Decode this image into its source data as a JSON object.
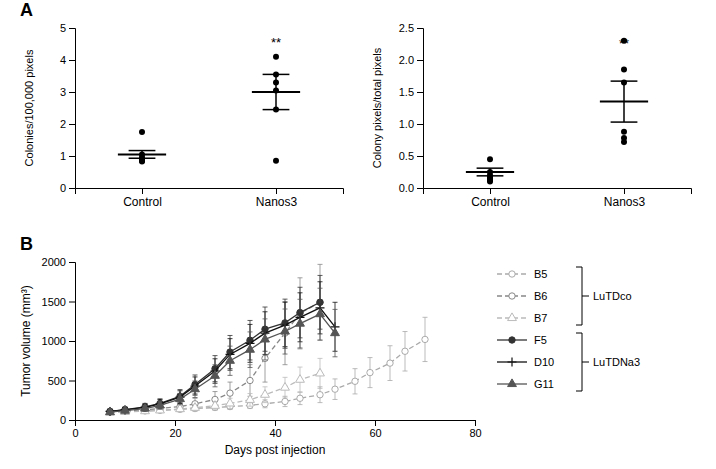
{
  "chart_data": [
    {
      "type": "dot",
      "title": "A",
      "ylabel": "Colonies/100,000 pixels",
      "categories": [
        "Control",
        "Nanos3"
      ],
      "points": [
        [
          1.75,
          1.05,
          0.95,
          0.9,
          0.88,
          0.85,
          0.83
        ],
        [
          4.1,
          3.55,
          3.3,
          3.05,
          2.45,
          0.85
        ]
      ],
      "means": [
        1.05,
        3.0
      ],
      "errors_low": [
        0.12,
        0.55
      ],
      "errors_high": [
        0.12,
        0.55
      ],
      "color": "#000000",
      "ylim": [
        0,
        5
      ],
      "yticks": [
        0,
        1,
        2,
        3,
        4,
        5
      ],
      "annotations": [
        {
          "text": "**",
          "x": "Nanos3",
          "y": 4.4
        }
      ],
      "grid": false
    },
    {
      "type": "dot",
      "ylabel": "Colony pixels/total pixels",
      "categories": [
        "Control",
        "Nanos3"
      ],
      "points": [
        [
          0.45,
          0.25,
          0.2,
          0.17,
          0.15,
          0.12,
          0.1
        ],
        [
          2.3,
          1.85,
          1.65,
          0.88,
          0.78,
          0.72
        ]
      ],
      "means": [
        0.25,
        1.35
      ],
      "errors_low": [
        0.06,
        0.32
      ],
      "errors_high": [
        0.06,
        0.32
      ],
      "color": "#000000",
      "ylim": [
        0,
        2.5
      ],
      "yticks": [
        {
          "value": 0,
          "label": "0.0"
        },
        0.5,
        {
          "value": 1,
          "label": "1.0"
        },
        1.5,
        {
          "value": 2,
          "label": "2.0"
        },
        2.5
      ],
      "annotations": [
        {
          "text": "**",
          "x": "Nanos3",
          "y": 2.18
        }
      ],
      "grid": false
    },
    {
      "type": "line",
      "title": "B",
      "xlabel": "Days post injection",
      "ylabel": "Tumor volume (mm³)",
      "xlim": [
        0,
        80
      ],
      "xticks": [
        0,
        20,
        40,
        60,
        80
      ],
      "ylim": [
        0,
        2000
      ],
      "yticks": [
        0,
        500,
        1000,
        1500,
        2000
      ],
      "legend": "right",
      "grid": false,
      "series": [
        {
          "name": "B5",
          "group": "LuTDco",
          "color": "#aaaaaa",
          "line_style": "dashed",
          "marker": "circle-open",
          "x": [
            7,
            10,
            14,
            17,
            21,
            24,
            28,
            31,
            35,
            38,
            42,
            45,
            49,
            52,
            56,
            59,
            63,
            66,
            70
          ],
          "values": [
            100,
            108,
            115,
            122,
            135,
            145,
            158,
            170,
            185,
            205,
            235,
            275,
            320,
            390,
            490,
            600,
            720,
            870,
            1020
          ],
          "errors": [
            15,
            18,
            20,
            22,
            25,
            28,
            32,
            36,
            40,
            50,
            65,
            80,
            100,
            130,
            160,
            190,
            220,
            250,
            280
          ]
        },
        {
          "name": "B6",
          "group": "LuTDco",
          "color": "#888888",
          "line_style": "dashed",
          "marker": "circle-open",
          "x": [
            7,
            10,
            14,
            17,
            21,
            24,
            28,
            31,
            35,
            38,
            42,
            45,
            49
          ],
          "values": [
            105,
            115,
            128,
            145,
            170,
            205,
            260,
            340,
            500,
            780,
            1100,
            1350,
            1490
          ],
          "errors": [
            20,
            25,
            30,
            38,
            50,
            70,
            100,
            140,
            200,
            300,
            400,
            450,
            480
          ]
        },
        {
          "name": "B7",
          "group": "LuTDco",
          "color": "#bbbbbb",
          "line_style": "dashed",
          "marker": "triangle-open",
          "x": [
            7,
            10,
            14,
            17,
            21,
            24,
            28,
            31,
            35,
            38,
            42,
            45,
            49
          ],
          "values": [
            95,
            103,
            112,
            122,
            138,
            155,
            180,
            210,
            255,
            320,
            410,
            510,
            590
          ],
          "errors": [
            15,
            18,
            22,
            28,
            35,
            42,
            52,
            65,
            80,
            100,
            130,
            160,
            190
          ]
        },
        {
          "name": "F5",
          "group": "LuTDNa3",
          "color": "#333333",
          "line_style": "solid",
          "marker": "circle",
          "x": [
            7,
            10,
            14,
            17,
            21,
            24,
            28,
            31,
            35,
            38,
            42,
            45,
            49
          ],
          "values": [
            110,
            132,
            165,
            210,
            300,
            450,
            650,
            860,
            1010,
            1150,
            1230,
            1360,
            1490
          ],
          "errors": [
            25,
            32,
            45,
            58,
            85,
            120,
            165,
            210,
            250,
            280,
            300,
            320,
            340
          ]
        },
        {
          "name": "D10",
          "group": "LuTDNa3",
          "color": "#111111",
          "line_style": "solid",
          "marker": "plus",
          "x": [
            7,
            10,
            14,
            17,
            21,
            24,
            28,
            31,
            35,
            38,
            42,
            45,
            49,
            52
          ],
          "values": [
            108,
            128,
            160,
            205,
            290,
            430,
            620,
            830,
            970,
            1100,
            1200,
            1300,
            1420,
            1180
          ],
          "errors": [
            22,
            30,
            42,
            55,
            80,
            115,
            155,
            200,
            240,
            270,
            290,
            310,
            330,
            310
          ]
        },
        {
          "name": "G11",
          "group": "LuTDNa3",
          "color": "#555555",
          "line_style": "solid",
          "marker": "triangle",
          "x": [
            7,
            10,
            14,
            17,
            21,
            24,
            28,
            31,
            35,
            38,
            42,
            45,
            49,
            52
          ],
          "values": [
            100,
            118,
            145,
            185,
            265,
            390,
            560,
            750,
            890,
            1020,
            1120,
            1220,
            1340,
            1100
          ],
          "errors": [
            20,
            28,
            38,
            50,
            72,
            105,
            140,
            185,
            225,
            260,
            285,
            308,
            328,
            300
          ]
        }
      ]
    }
  ]
}
